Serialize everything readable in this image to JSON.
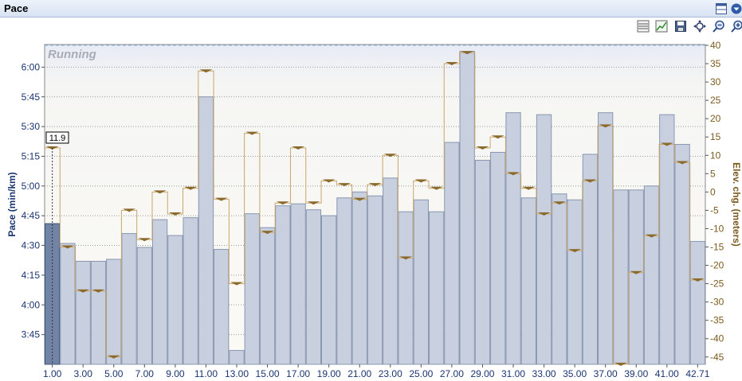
{
  "window": {
    "title": "Pace"
  },
  "toolbar": {
    "icons": [
      "chart-type-icon",
      "chart-settings-icon",
      "save-icon",
      "fit-zoom-icon",
      "zoom-out-icon",
      "zoom-in-icon"
    ]
  },
  "titlebar_icons": [
    "window-layout-icon",
    "dropdown-icon"
  ],
  "colors": {
    "bar_fill": "#c8d0e0",
    "bar_stroke": "#8896b0",
    "selected_bar": "#7184a6",
    "elev_line": "#c8a66a",
    "marker": "#8b6a2e",
    "axis_left": "#1a3570",
    "axis_right": "#7a5a1e",
    "plot_bg_top": "#e9edf6",
    "plot_bg": "#fbfaf5"
  },
  "chart_data": {
    "type": "bar",
    "title": "",
    "overlay_label": "Running",
    "y_left": {
      "label": "Pace (min/km)",
      "ticks": [
        "3:45",
        "4:00",
        "4:15",
        "4:30",
        "4:45",
        "5:00",
        "5:15",
        "5:30",
        "5:45",
        "6:00"
      ],
      "range_seconds": [
        210,
        371
      ]
    },
    "y_right": {
      "label": "Elev. chg. (meters)",
      "ticks": [
        -45,
        -40,
        -35,
        -30,
        -25,
        -20,
        -15,
        -10,
        -5,
        0,
        5,
        10,
        15,
        20,
        25,
        30,
        35,
        40
      ],
      "range": [
        -47,
        40
      ]
    },
    "x": {
      "tick_labels": [
        "1.00",
        "3.00",
        "5.00",
        "7.00",
        "9.00",
        "11.00",
        "13.00",
        "15.00",
        "17.00",
        "19.00",
        "21.00",
        "23.00",
        "25.00",
        "27.00",
        "29.00",
        "31.00",
        "33.00",
        "35.00",
        "37.00",
        "39.00",
        "41.00",
        "42.71"
      ],
      "gridlines": false
    },
    "tooltip": "11.9",
    "selected_index": 0,
    "series": [
      {
        "name": "Pace",
        "unit": "seconds per km",
        "values": [
          281,
          271,
          262,
          262,
          263,
          276,
          269,
          283,
          275,
          284,
          345,
          268,
          217,
          286,
          279,
          290,
          291,
          288,
          285,
          294,
          297,
          295,
          304,
          287,
          293,
          287,
          322,
          368,
          313,
          317,
          337,
          294,
          336,
          296,
          293,
          316,
          337,
          298,
          298,
          300,
          336,
          321,
          272
        ]
      },
      {
        "name": "Elev. chg.",
        "unit": "meters",
        "values": [
          12,
          -15,
          -27,
          -27,
          -45,
          -5,
          -13,
          0,
          -6,
          1,
          33,
          -2,
          -25,
          16,
          -11,
          -3,
          12,
          -3,
          3,
          2,
          -2,
          2,
          10,
          -18,
          3,
          1,
          35,
          38,
          12,
          15,
          5,
          1,
          -6,
          -3,
          -16,
          3,
          18,
          -47,
          -22,
          -12,
          13,
          8,
          -24
        ]
      }
    ]
  }
}
